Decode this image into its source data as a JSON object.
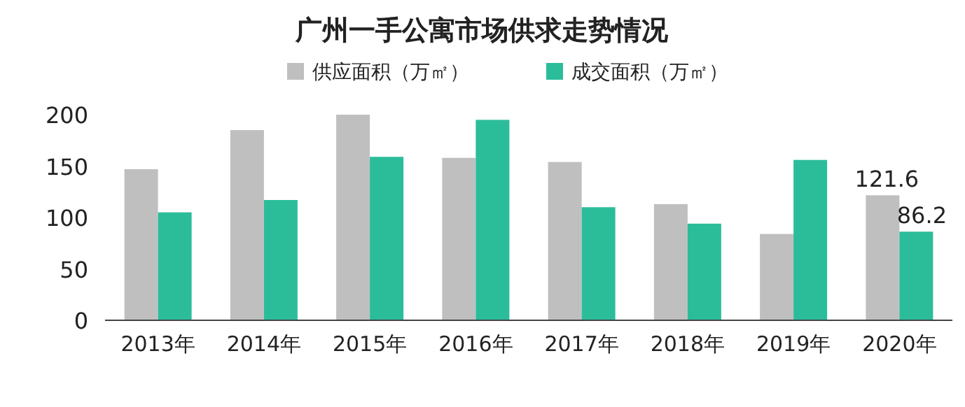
{
  "chart_data": {
    "type": "bar",
    "title": "广州一手公寓市场供求走势情况",
    "categories": [
      "2013年",
      "2014年",
      "2015年",
      "2016年",
      "2017年",
      "2018年",
      "2019年",
      "2020年"
    ],
    "series": [
      {
        "name": "供应面积（万㎡）",
        "color": "#c0bfbf",
        "values": [
          147,
          185,
          200,
          158,
          154,
          113,
          84,
          121.6
        ],
        "value_labels": [
          null,
          null,
          null,
          null,
          null,
          null,
          null,
          "121.6"
        ]
      },
      {
        "name": "成交面积（万㎡）",
        "color": "#2bbd9a",
        "values": [
          105,
          117,
          159,
          195,
          110,
          94,
          156,
          86.2
        ],
        "value_labels": [
          null,
          null,
          null,
          null,
          null,
          null,
          null,
          "86.2"
        ]
      }
    ],
    "ylim": [
      0,
      200
    ],
    "yticks": [
      0,
      50,
      100,
      150,
      200
    ],
    "legend": "top"
  }
}
